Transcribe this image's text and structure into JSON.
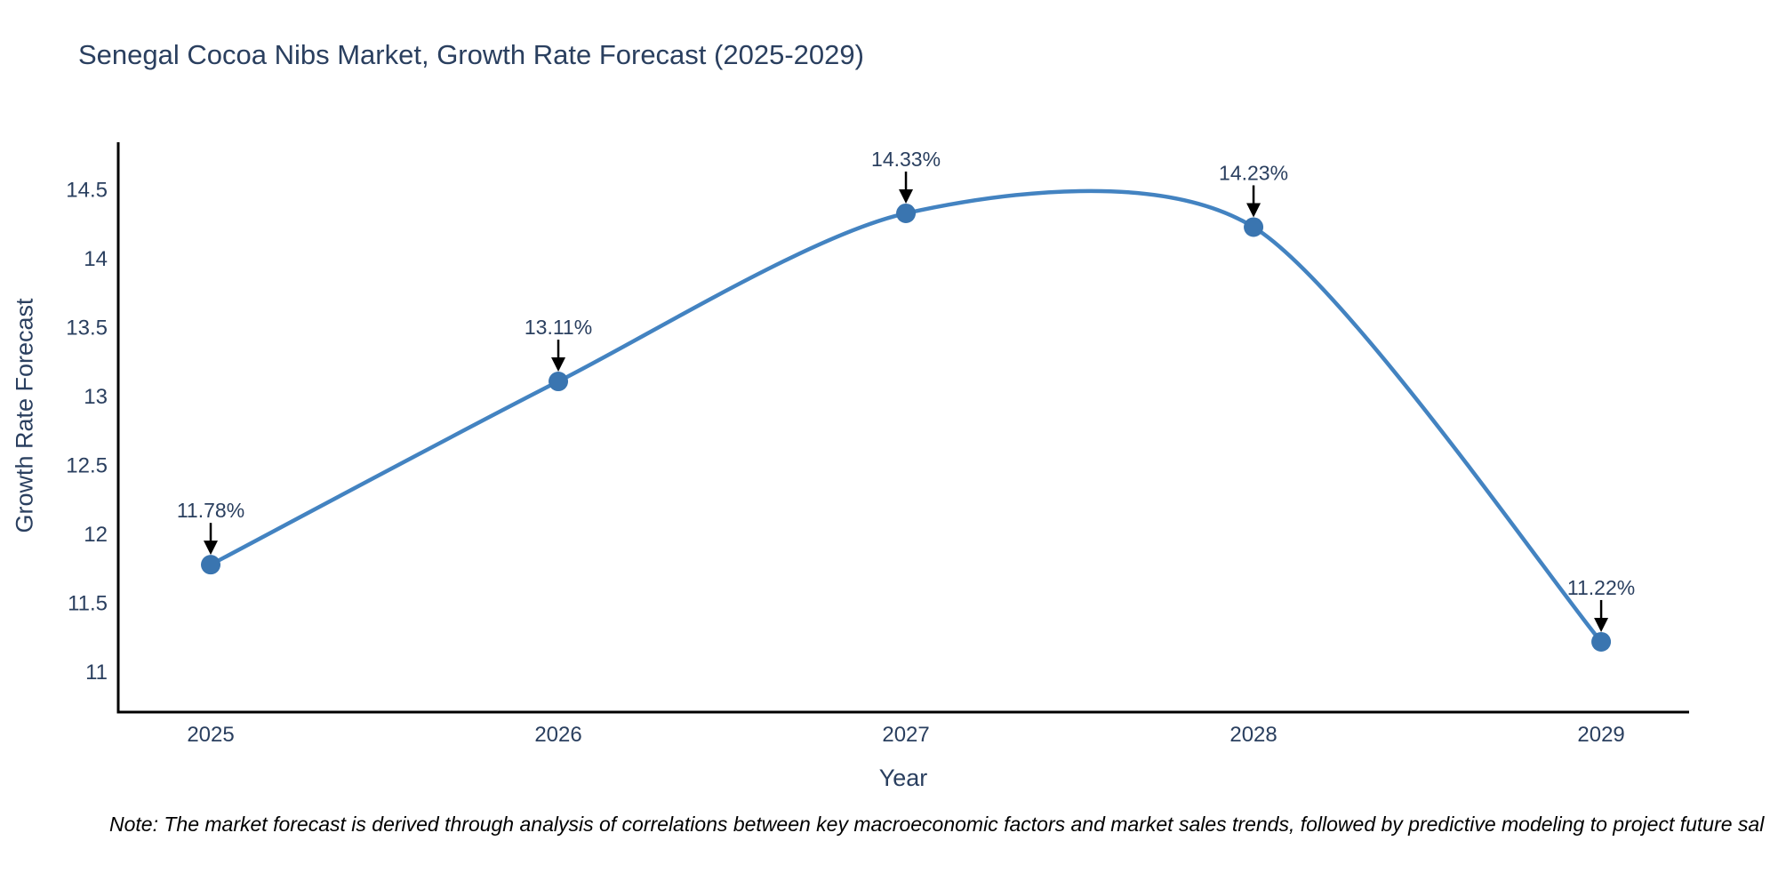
{
  "page": {
    "title": "Senegal Cocoa Nibs Market, Growth Rate Forecast (2025-2029)"
  },
  "note": {
    "text": "Note: The market forecast is derived through analysis of correlations between key macroeconomic factors and market sales trends, followed by predictive modeling to project future sal"
  },
  "chart_data": {
    "type": "line",
    "line_shape": "spline",
    "title": "Senegal Cocoa Nibs Market, Growth Rate Forecast (2025-2029)",
    "xlabel": "Year",
    "ylabel": "Growth Rate Forecast",
    "categories": [
      "2025",
      "2026",
      "2027",
      "2028",
      "2029"
    ],
    "x": [
      2025,
      2026,
      2027,
      2028,
      2029
    ],
    "values": [
      11.78,
      13.11,
      14.33,
      14.23,
      11.22
    ],
    "point_labels": [
      "11.78%",
      "13.11%",
      "14.33%",
      "14.23%",
      "11.22%"
    ],
    "yticks": [
      11,
      11.5,
      12,
      12.5,
      13,
      13.5,
      14,
      14.5
    ],
    "ytick_labels": [
      "11",
      "11.5",
      "12",
      "12.5",
      "13",
      "13.5",
      "14",
      "14.5"
    ],
    "xlim": [
      2024.734,
      2029.253
    ],
    "ylim": [
      10.71,
      14.846
    ],
    "grid": false,
    "legend": false,
    "annotations_have_arrows": true,
    "colors": {
      "line": "#4383c1",
      "marker": "#3a75b0",
      "axis": "#000000",
      "tick_text": "#2a3f5f",
      "title_text": "#2a3f5f",
      "annotation_text": "#2a3f5f",
      "annotation_arrow": "#000000",
      "note_text": "#000000",
      "background": "#ffffff"
    }
  }
}
